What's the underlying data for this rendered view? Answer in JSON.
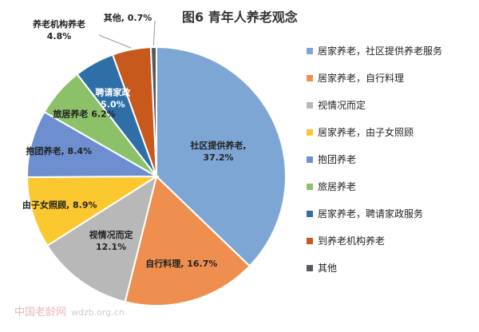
{
  "watermark": {
    "brand": "中国老龄网",
    "site": "wdzb.org.cn"
  },
  "chart_data": {
    "type": "pie",
    "title": "图6  青年人养老观念",
    "legend_position": "right",
    "slices": [
      {
        "label": "社区提供养老,",
        "legend": "居家养老，社区提供养老服务",
        "value": 37.2,
        "value_text": "37.2%",
        "color": "#7ea6d4"
      },
      {
        "label": "自行料理,",
        "legend": "居家养老，自行料理",
        "value": 16.7,
        "value_text": "16.7%",
        "color": "#ef8f4f"
      },
      {
        "label": "视情况而定",
        "legend": "视情况而定",
        "value": 12.1,
        "value_text": "12.1%",
        "color": "#b8b8b8"
      },
      {
        "label": "由子女照顾,",
        "legend": "居家养老，由子女照顾",
        "value": 8.9,
        "value_text": "8.9%",
        "color": "#fcc830"
      },
      {
        "label": "抱团养老,",
        "legend": "抱团养老",
        "value": 8.4,
        "value_text": "8.4%",
        "color": "#6d8fd0"
      },
      {
        "label": "旅居养老",
        "legend": "旅居养老",
        "value": 6.2,
        "value_text": "6.2%",
        "color": "#8cc069"
      },
      {
        "label": "聘请家政",
        "legend": "居家养老，聘请家政服务",
        "value": 5.0,
        "value_text": "5.0%",
        "color": "#2f6fa8"
      },
      {
        "label": "养老机构养老",
        "legend": "到养老机构养老",
        "value": 4.8,
        "value_text": "4.8%",
        "color": "#c8591c"
      },
      {
        "label": "其他,",
        "legend": "其他",
        "value": 0.7,
        "value_text": "0.7%",
        "color": "#555a62"
      }
    ]
  }
}
